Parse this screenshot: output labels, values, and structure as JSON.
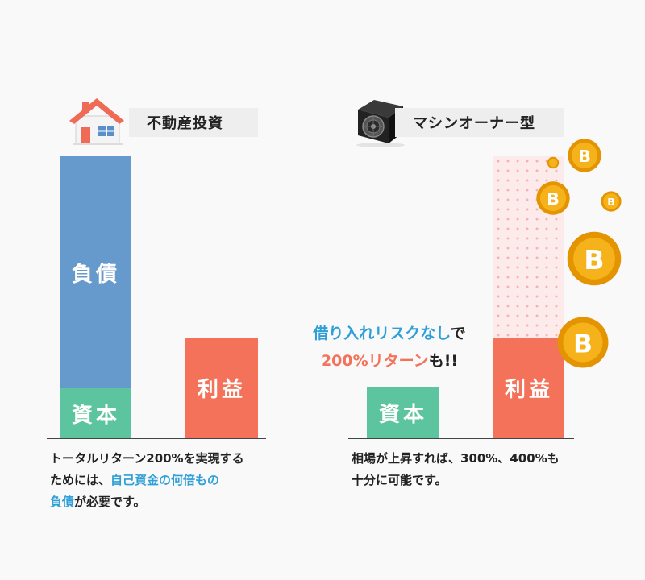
{
  "left": {
    "header": "不動産投資",
    "icon": "house-icon",
    "bars": {
      "debt": "負債",
      "capital": "資本",
      "profit": "利益"
    },
    "caption": {
      "line1": "トータルリターン200%を実現する",
      "line2_prefix": "ためには、",
      "line2_highlight": "自己資金の何倍もの",
      "line3_highlight": "負債",
      "line3_suffix": "が必要です。"
    }
  },
  "right": {
    "header": "マシンオーナー型",
    "icon": "mining-machine-icon",
    "bars": {
      "capital": "資本",
      "profit": "利益"
    },
    "callout": {
      "line1_blue": "借り入れリスクなし",
      "line1_dark": "で",
      "line2_red": "200%リターン",
      "line2_dark": "も!!"
    },
    "caption": {
      "line1": "相場が上昇すれば、300%、400%も",
      "line2": "十分に可能です。"
    }
  },
  "colors": {
    "debt": "#6699cc",
    "capital": "#5cc59f",
    "profit": "#f4725a",
    "potential": "#fdeaea",
    "highlight": "#2f9fd8",
    "coin": "#f6b21b"
  }
}
